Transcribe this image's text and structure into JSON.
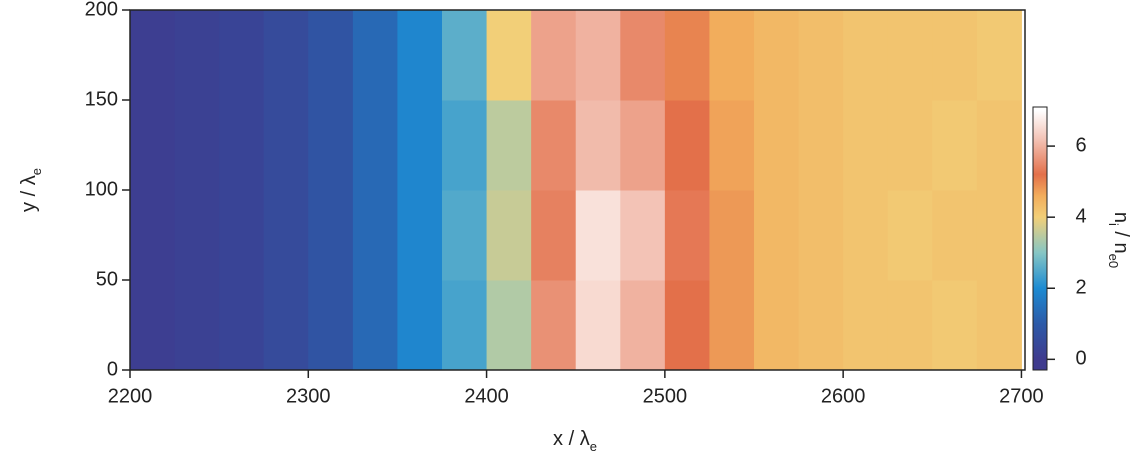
{
  "chart_data": {
    "type": "heatmap",
    "xlabel": [
      "x / λ",
      "e"
    ],
    "ylabel": [
      "y / λ",
      "e"
    ],
    "colorbar_label": [
      "n",
      "i",
      " / n",
      "e0"
    ],
    "xbins": [
      2200,
      2225,
      2250,
      2275,
      2300,
      2325,
      2350,
      2375,
      2400,
      2425,
      2450,
      2475,
      2500,
      2525,
      2550,
      2575,
      2600,
      2625,
      2650,
      2675,
      2700
    ],
    "ybins": [
      0,
      50,
      100,
      150,
      200
    ],
    "z": [
      [
        0.1,
        0.2,
        0.3,
        0.5,
        0.8,
        1.3,
        1.9,
        2.4,
        3.4,
        5.6,
        6.5,
        6.0,
        5.2,
        4.8,
        4.4,
        4.3,
        4.2,
        4.2,
        4.1,
        4.2
      ],
      [
        0.1,
        0.2,
        0.3,
        0.5,
        0.8,
        1.3,
        1.9,
        2.5,
        3.6,
        5.4,
        6.6,
        6.2,
        5.3,
        4.8,
        4.4,
        4.3,
        4.2,
        4.1,
        4.2,
        4.2
      ],
      [
        0.1,
        0.2,
        0.3,
        0.5,
        0.8,
        1.3,
        1.9,
        2.4,
        3.5,
        5.5,
        6.1,
        5.8,
        5.2,
        4.7,
        4.4,
        4.3,
        4.2,
        4.2,
        4.1,
        4.2
      ],
      [
        0.1,
        0.2,
        0.3,
        0.5,
        0.8,
        1.3,
        1.9,
        2.6,
        4.0,
        5.8,
        6.0,
        5.5,
        5.0,
        4.6,
        4.4,
        4.3,
        4.2,
        4.2,
        4.2,
        4.1
      ]
    ],
    "xlim": [
      2200,
      2702
    ],
    "ylim": [
      0,
      200
    ],
    "xticks": [
      2200,
      2300,
      2400,
      2500,
      2600,
      2700
    ],
    "yticks": [
      0,
      50,
      100,
      150,
      200
    ],
    "clim": [
      -0.3,
      7.1
    ],
    "cticks": [
      0,
      2,
      4,
      6
    ],
    "colormap": [
      {
        "value": 0,
        "color": "#3f3b8e"
      },
      {
        "value": 1,
        "color": "#2c5aa8"
      },
      {
        "value": 2,
        "color": "#1d8bd2"
      },
      {
        "value": 3,
        "color": "#86c6c4"
      },
      {
        "value": 4,
        "color": "#f2cf78"
      },
      {
        "value": 4.6,
        "color": "#f2ad5c"
      },
      {
        "value": 5.2,
        "color": "#e3704a"
      },
      {
        "value": 6.2,
        "color": "#f3c3b6"
      },
      {
        "value": 7,
        "color": "#ffffff"
      }
    ]
  }
}
